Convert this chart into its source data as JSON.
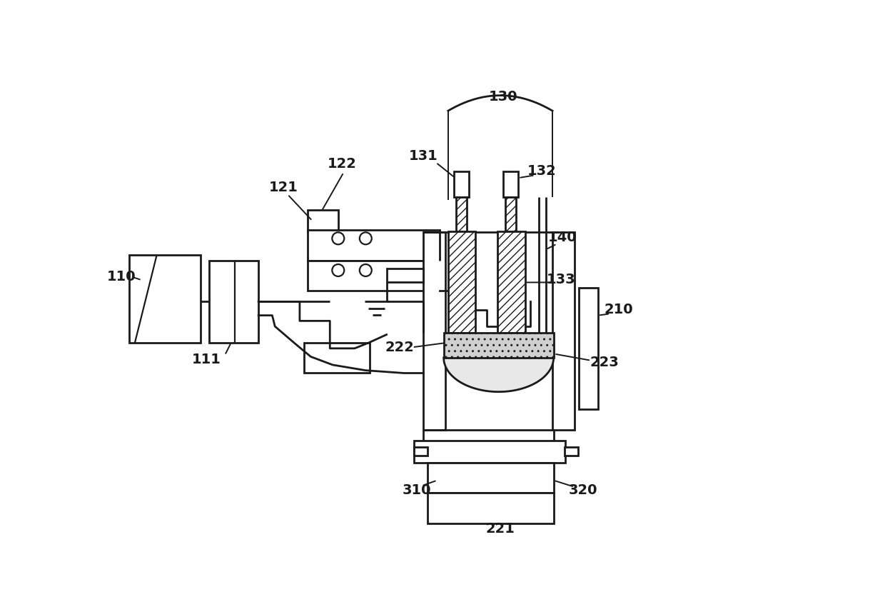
{
  "bg_color": "#ffffff",
  "lc": "#1a1a1a",
  "lw": 2.0,
  "figsize": [
    12.4,
    8.57
  ],
  "dpi": 100
}
